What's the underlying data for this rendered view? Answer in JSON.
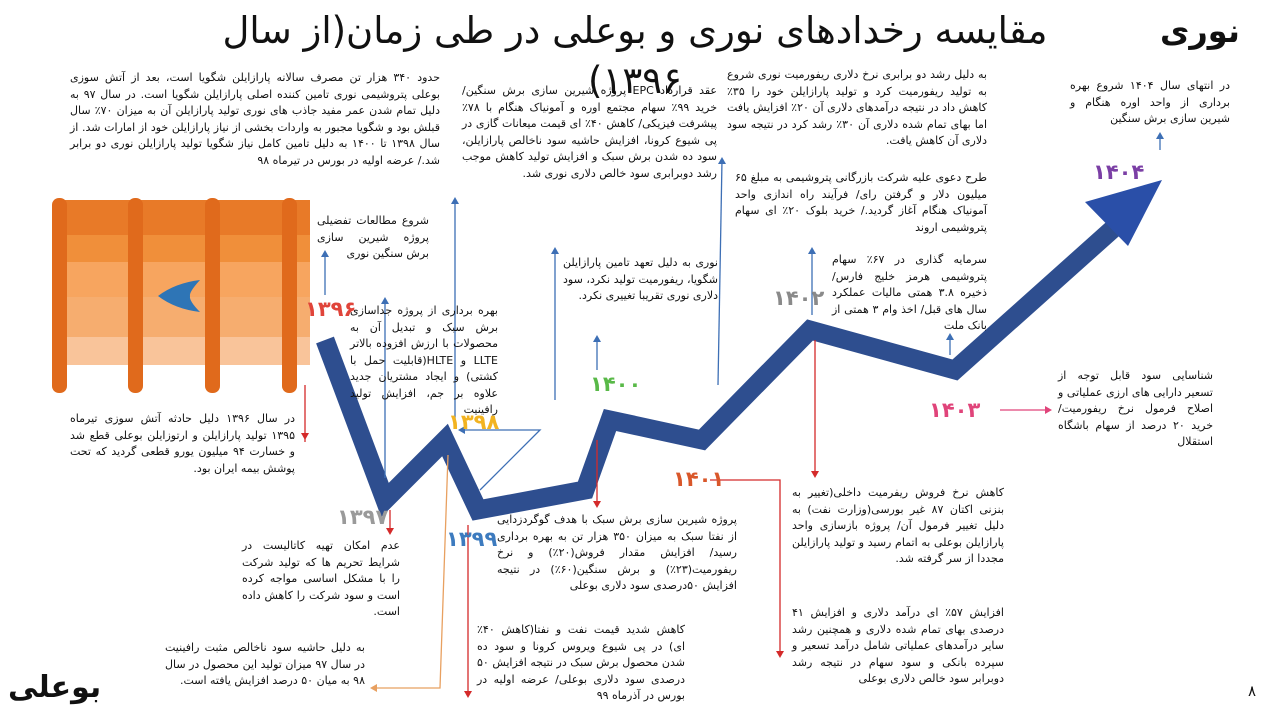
{
  "header": {
    "title": "مقایسه رخدادهای نوری و بوعلی در طی زمان(از سال ۱۳۹۶)",
    "company_top": "نوری",
    "company_bottom": "بوعلی",
    "page_number": "۸"
  },
  "colors": {
    "arrow": "#2e4e8f",
    "arrow_head": "#2a4fa8",
    "barrel_dark": "#e77b2c",
    "barrel_mid": "#f08f3a",
    "barrel_light": "#f7b98a",
    "drop": "#2e75b6",
    "connector_red": "#d42a2a",
    "connector_blue": "#3d6fb5",
    "connector_orange": "#e8a060"
  },
  "years": [
    {
      "id": "y1396",
      "label": "۱۳۹۶",
      "color": "#e0443a"
    },
    {
      "id": "y1397",
      "label": "۱۳۹۷",
      "color": "#9a9a9a"
    },
    {
      "id": "y1398",
      "label": "۱۳۹۸",
      "color": "#f2b321"
    },
    {
      "id": "y1399",
      "label": "۱۳۹۹",
      "color": "#3d7bbf"
    },
    {
      "id": "y1400",
      "label": "۱۴۰۰",
      "color": "#59b948"
    },
    {
      "id": "y1401",
      "label": "۱۴۰۱",
      "color": "#d9572a"
    },
    {
      "id": "y1402",
      "label": "۱۴۰۲",
      "color": "#8a8a8a"
    },
    {
      "id": "y1403",
      "label": "۱۴۰۳",
      "color": "#e0447a"
    },
    {
      "id": "y1404",
      "label": "۱۴۰۴",
      "color": "#7b3fa5"
    }
  ],
  "notes": {
    "noori_1396_a": "حدود ۳۴۰ هزار تن مصرف سالانه پارازایلن شگویا است، بعد از آتش سوزی بوعلی پتروشیمی نوری تامین کننده اصلی پارازایلن شگویا است. در سال ۹۷ به دلیل تمام شدن عمر مفید جاذب های نوری تولید پارازایلن آن به میزان ۷۰٪ سال قبلش بود و شگویا مجبور به واردات بخشی از نیاز پارازایلن خود از امارات شد. از سال ۱۳۹۸ تا ۱۴۰۰ به دلیل تامین کامل نیاز شگویا تولید پارازایلن نوری دو برابر شد./ عرضه اولیه در بورس در تیرماه ۹۸",
    "noori_1396_b": "شروع مطالعات تفضیلی پروژه شیرین سازی برش سنگین نوری",
    "noori_1398": "بهره برداری از پروژه جداسازی برش سبک و تبدیل آن به محصولات با ارزش افزوده بالاتر LLTE و HLTE(قابلیت حمل با کشتی) و ایجاد مشتریان جدید علاوه بر جم، افزایش تولید رافینیت",
    "noori_1399": "عقد قرارداد EPC پروژه شیرین سازی برش سنگین/ خرید ۹۹٪ سهام مجتمع اوره و آمونیاک هنگام با ۷۸٪ پیشرفت فیزیکی/ کاهش ۴۰٪ ای قیمت میعانات گازی در پی شیوع کرونا، افزایش حاشیه سود ناخالص پارازایلن، سود ده شدن برش سبک و افزایش تولید کاهش موجب رشد دوبرابری سود خالص دلاری نوری شد.",
    "noori_1400": "نوری به دلیل تعهد تامین پارازایلن شگویا، ریفورمیت تولید نکرد، سود دلاری نوری تقریبا تغییری نکرد.",
    "noori_1401": "به دلیل رشد دو برابری نرخ دلاری ریفورمیت نوری شروع به تولید ریفورمیت کرد و تولید پارازایلن خود را ۳۵٪ کاهش داد در نتیجه درآمدهای دلاری آن ۲۰٪ افزایش یافت اما بهای تمام شده دلاری آن ۳۰٪ رشد کرد در نتیجه سود دلاری آن کاهش یافت.",
    "noori_1402_a": "طرح دعوی علیه شرکت بازرگانی پتروشیمی به مبلغ ۶۵ میلیون دلار و گرفتن رای/ فرآیند راه اندازی واحد آمونیاک هنگام آغاز گردید./ خرید بلوک ۲۰٪ ای سهام پتروشیمی اروند",
    "noori_1402_b": "سرمایه گذاری در ۶۷٪ سهام پتروشیمی هرمز خلیج فارس/ ذخیره ۳.۸ همتی مالیات عملکرد سال های قبل/ اخذ وام ۳ همتی از بانک ملت",
    "noori_1403": "شناسایی سود قابل توجه از تسعیر دارایی های ارزی عملیاتی و اصلاح فرمول نرخ ریفورمیت/ خرید ۲۰ درصد از سهام باشگاه استقلال",
    "noori_1404": "در انتهای سال ۱۴۰۴ شروع بهره برداری از واحد اوره هنگام و شیرین سازی برش سنگین",
    "boali_1396": "در سال ۱۳۹۶ دلیل حادثه آتش سوزی تیرماه ۱۳۹۵ تولید پارازایلن و ارتوزایلن بوعلی قطع شد و خسارت ۹۴ میلیون یورو قطعی گردید که تحت پوشش بیمه ایران بود.",
    "boali_1397": "عدم امکان تهیه کاتالیست در شرایط تحریم ها که تولید شرکت را با مشکل اساسی مواجه کرده است و سود شرکت را کاهش داده است.",
    "boali_1398": "به دلیل حاشیه سود ناخالص مثبت رافینیت در سال ۹۷ میزان تولید این محصول در سال ۹۸ به میان ۵۰ درصد افزایش یافته است.",
    "boali_1399": "کاهش شدید قیمت نفت و نفتا(کاهش ۴۰٪ ای) در پی شیوع ویروس کرونا و سود ده شدن محصول برش سبک در نتیجه افزایش ۵۰ درصدی سود دلاری بوعلی/ عرضه اولیه در بورس در آذرماه ۹۹",
    "boali_1400": "پروژه شیرین سازی برش سبک با هدف گوگردزدایی از نفتا سبک به میزان ۳۵۰ هزار تن به بهره برداری رسید/ افزایش مقدار فروش(۲۰٪) و نرخ ریفورمیت(۲۳٪) و برش سنگین(۶۰٪) در نتیجه افزایش ۵۰درصدی سود دلاری بوعلی",
    "boali_1401_a": "کاهش نرخ فروش ریفرمیت داخلی(تغییر به بنزنی اکتان ۸۷ غیر بورسی(وزارت نفت) به دلیل تغییر فرمول آن/ پروژه بازسازی واحد پارازایلن بوعلی به اتمام رسید و تولید پارازایلن مجددا از سر گرفته شد.",
    "boali_1401_b": "افزایش ۵۷٪ ای درآمد دلاری و افزایش ۴۱ درصدی بهای تمام شده دلاری و همچنین رشد سایر درآمدهای عملیاتی شامل درآمد تسعیر و سپرده بانکی و سود سهام در نتیجه رشد دوبرابر سود خالص دلاری بوعلی"
  }
}
